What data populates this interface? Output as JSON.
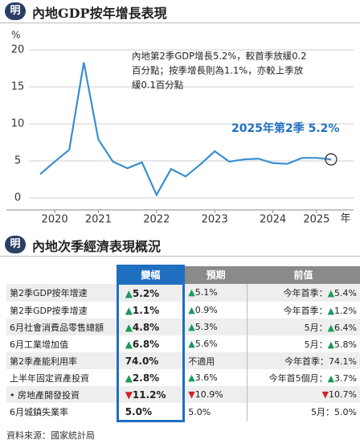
{
  "header": {
    "title": "內地GDP按年增長表現",
    "logo": "明"
  },
  "chart_data": {
    "type": "line",
    "y_unit": "%",
    "x_unit": "年",
    "x": [
      2020.25,
      2020.5,
      2020.75,
      2021.0,
      2021.25,
      2021.5,
      2021.75,
      2022.0,
      2022.25,
      2022.5,
      2022.75,
      2023.0,
      2023.25,
      2023.5,
      2023.75,
      2024.0,
      2024.25,
      2024.5,
      2024.75,
      2025.0,
      2025.25
    ],
    "series": [
      {
        "name": "GDP按年增長",
        "color": "#3a8fd0",
        "values": [
          3.2,
          4.9,
          6.5,
          18.3,
          7.9,
          4.9,
          4.0,
          4.8,
          0.4,
          3.9,
          2.9,
          4.5,
          6.3,
          4.9,
          5.2,
          5.3,
          4.7,
          4.6,
          5.4,
          5.4,
          5.2
        ]
      }
    ],
    "xlim": [
      2020.25,
      2025.25
    ],
    "xticks": [
      {
        "value": 2020.5,
        "label": "2020"
      },
      {
        "value": 2021.25,
        "label": "2021"
      },
      {
        "value": 2022.25,
        "label": "2022"
      },
      {
        "value": 2023.25,
        "label": "2023"
      },
      {
        "value": 2024.25,
        "label": "2024"
      },
      {
        "value": 2025.0,
        "label": "2025"
      }
    ],
    "ylim": [
      0,
      20
    ],
    "yticks": [
      0,
      5,
      10,
      15,
      20
    ],
    "grid": true,
    "annotation_lines": [
      "內地第2季GDP增長5.2%，較首季放緩0.2",
      "百分點；按季增長則為1.1%，亦較上季放",
      "緩0.1百分點"
    ],
    "callout": "2025年第2季 5.2%"
  },
  "table": {
    "title": "內地次季經濟表現概況",
    "logo": "明",
    "columns": [
      "變幅",
      "預期",
      "前值"
    ],
    "rows": [
      {
        "label": "第2季GDP按年增速",
        "change": {
          "arrow": "▲",
          "text": "5.2%"
        },
        "forecast": {
          "arrow": "▲",
          "text": "5.1%"
        },
        "previous": {
          "prefix": "今年首季：",
          "arrow": "▲",
          "text": "5.4%"
        }
      },
      {
        "label": "第2季GDP按季增速",
        "change": {
          "arrow": "▲",
          "text": "1.1%"
        },
        "forecast": {
          "arrow": "▲",
          "text": "0.9%"
        },
        "previous": {
          "prefix": "今年首季：",
          "arrow": "▲",
          "text": "1.2%"
        }
      },
      {
        "label": "6月社會消費品零售總額",
        "change": {
          "arrow": "▲",
          "text": "4.8%"
        },
        "forecast": {
          "arrow": "▲",
          "text": "5.3%"
        },
        "previous": {
          "prefix": "5月：",
          "arrow": "▲",
          "text": "6.4%"
        }
      },
      {
        "label": "6月工業增加值",
        "change": {
          "arrow": "▲",
          "text": "6.8%"
        },
        "forecast": {
          "arrow": "▲",
          "text": "5.6%"
        },
        "previous": {
          "prefix": "5月：",
          "arrow": "▲",
          "text": "5.8%"
        }
      },
      {
        "label": "第2季產能利用率",
        "change": {
          "text": "74.0%"
        },
        "forecast": {
          "text": "不適用"
        },
        "previous": {
          "prefix": "今年首季：",
          "text": "74.1%"
        }
      },
      {
        "label": "上半年固定資產投資",
        "change": {
          "arrow": "▲",
          "text": "2.8%"
        },
        "forecast": {
          "arrow": "▲",
          "text": "3.6%"
        },
        "previous": {
          "prefix": "今年首5個月：",
          "arrow": "▲",
          "text": "3.7%"
        }
      },
      {
        "label": "• 房地產開發投資",
        "change": {
          "arrow": "▼",
          "text": "11.2%"
        },
        "forecast": {
          "arrow": "▼",
          "text": "10.9%"
        },
        "previous": {
          "arrow": "▼",
          "text": "10.7%"
        }
      },
      {
        "label": "6月城鎮失業率",
        "change": {
          "text": "5.0%"
        },
        "forecast": {
          "text": "5.0%"
        },
        "previous": {
          "prefix": "5月：",
          "text": "5.0%"
        }
      }
    ],
    "up_color": "#1a9a5a",
    "down_color": "#d0202a"
  },
  "source": "資料來源：國家統計局"
}
